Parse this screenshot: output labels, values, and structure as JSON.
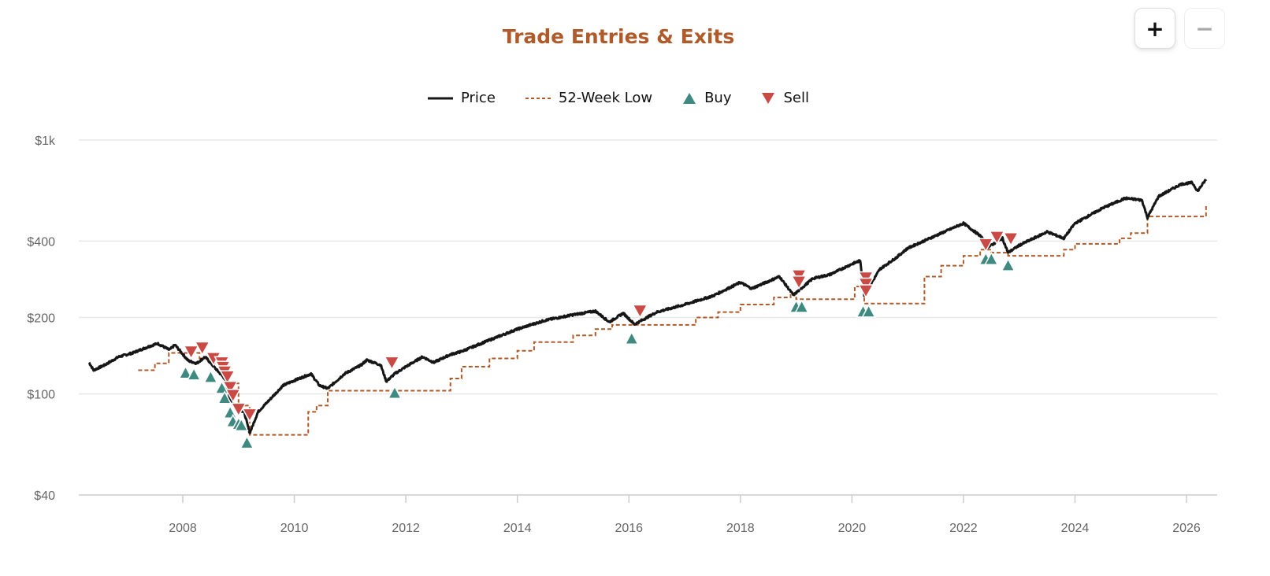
{
  "controls": {
    "zoom_in": "+",
    "zoom_out": "−"
  },
  "colors": {
    "price": "#161616",
    "low": "#b05a2a",
    "buy": "#3e8a80",
    "sell": "#c94a44",
    "title": "#b05a2a",
    "grid": "#e8e8e8"
  },
  "chart_data": {
    "type": "line",
    "title": "Trade Entries & Exits",
    "legend": {
      "position": "top-center",
      "items": [
        {
          "label": "Price",
          "icon": "solid-line"
        },
        {
          "label": "52-Week Low",
          "icon": "dashed-line"
        },
        {
          "label": "Buy",
          "icon": "triangle-up"
        },
        {
          "label": "Sell",
          "icon": "triangle-down"
        }
      ]
    },
    "y_scale": "log",
    "ylim": [
      40,
      1000
    ],
    "y_ticks": [
      {
        "v": 1000,
        "label": "$1k"
      },
      {
        "v": 400,
        "label": "$400"
      },
      {
        "v": 200,
        "label": "$200"
      },
      {
        "v": 100,
        "label": "$100"
      },
      {
        "v": 40,
        "label": "$40"
      }
    ],
    "x_ticks": [
      "2008",
      "2010",
      "2012",
      "2014",
      "2016",
      "2018",
      "2020",
      "2022",
      "2024",
      "2026"
    ],
    "xlim": [
      2006.0,
      2026.6
    ],
    "grid": true,
    "series": [
      {
        "name": "Price",
        "style": "solid",
        "points": [
          [
            2006.32,
            133
          ],
          [
            2006.4,
            124
          ],
          [
            2006.6,
            130
          ],
          [
            2006.85,
            140
          ],
          [
            2007.1,
            145
          ],
          [
            2007.4,
            154
          ],
          [
            2007.55,
            158
          ],
          [
            2007.76,
            149
          ],
          [
            2007.86,
            156
          ],
          [
            2007.97,
            146
          ],
          [
            2008.1,
            135
          ],
          [
            2008.25,
            132
          ],
          [
            2008.4,
            140
          ],
          [
            2008.6,
            125
          ],
          [
            2008.75,
            115
          ],
          [
            2008.85,
            95
          ],
          [
            2008.95,
            88
          ],
          [
            2009.1,
            85
          ],
          [
            2009.2,
            70
          ],
          [
            2009.35,
            85
          ],
          [
            2009.5,
            92
          ],
          [
            2009.8,
            108
          ],
          [
            2010.0,
            113
          ],
          [
            2010.3,
            120
          ],
          [
            2010.45,
            108
          ],
          [
            2010.6,
            105
          ],
          [
            2010.9,
            120
          ],
          [
            2011.2,
            130
          ],
          [
            2011.3,
            136
          ],
          [
            2011.55,
            130
          ],
          [
            2011.65,
            112
          ],
          [
            2011.8,
            120
          ],
          [
            2012.0,
            128
          ],
          [
            2012.3,
            140
          ],
          [
            2012.5,
            133
          ],
          [
            2012.8,
            143
          ],
          [
            2013.0,
            147
          ],
          [
            2013.5,
            163
          ],
          [
            2014.0,
            180
          ],
          [
            2014.5,
            195
          ],
          [
            2015.0,
            205
          ],
          [
            2015.4,
            212
          ],
          [
            2015.65,
            192
          ],
          [
            2015.9,
            208
          ],
          [
            2016.1,
            188
          ],
          [
            2016.5,
            210
          ],
          [
            2017.0,
            225
          ],
          [
            2017.5,
            243
          ],
          [
            2018.0,
            275
          ],
          [
            2018.2,
            260
          ],
          [
            2018.7,
            290
          ],
          [
            2018.95,
            245
          ],
          [
            2019.3,
            285
          ],
          [
            2019.6,
            295
          ],
          [
            2020.0,
            325
          ],
          [
            2020.15,
            335
          ],
          [
            2020.22,
            245
          ],
          [
            2020.5,
            310
          ],
          [
            2020.8,
            345
          ],
          [
            2021.0,
            375
          ],
          [
            2021.5,
            420
          ],
          [
            2022.0,
            470
          ],
          [
            2022.3,
            420
          ],
          [
            2022.45,
            380
          ],
          [
            2022.7,
            410
          ],
          [
            2022.8,
            360
          ],
          [
            2023.0,
            385
          ],
          [
            2023.5,
            435
          ],
          [
            2023.8,
            410
          ],
          [
            2024.0,
            470
          ],
          [
            2024.5,
            540
          ],
          [
            2024.9,
            590
          ],
          [
            2025.2,
            580
          ],
          [
            2025.3,
            495
          ],
          [
            2025.5,
            600
          ],
          [
            2025.9,
            670
          ],
          [
            2026.1,
            680
          ],
          [
            2026.2,
            630
          ],
          [
            2026.35,
            700
          ]
        ]
      },
      {
        "name": "52-Week Low",
        "style": "dashed-step",
        "points": [
          [
            2007.2,
            124
          ],
          [
            2007.5,
            132
          ],
          [
            2007.75,
            145
          ],
          [
            2008.3,
            138
          ],
          [
            2008.5,
            132
          ],
          [
            2008.8,
            110
          ],
          [
            2009.0,
            90
          ],
          [
            2009.2,
            69
          ],
          [
            2010.2,
            69
          ],
          [
            2010.25,
            85
          ],
          [
            2010.4,
            90
          ],
          [
            2010.6,
            103
          ],
          [
            2012.7,
            103
          ],
          [
            2012.8,
            115
          ],
          [
            2013.0,
            128
          ],
          [
            2013.5,
            138
          ],
          [
            2014.0,
            148
          ],
          [
            2014.3,
            160
          ],
          [
            2015.0,
            170
          ],
          [
            2015.4,
            180
          ],
          [
            2015.7,
            187
          ],
          [
            2017.0,
            187
          ],
          [
            2017.2,
            200
          ],
          [
            2017.6,
            210
          ],
          [
            2018.0,
            225
          ],
          [
            2018.6,
            240
          ],
          [
            2018.9,
            248
          ],
          [
            2019.0,
            236
          ],
          [
            2020.0,
            236
          ],
          [
            2020.05,
            265
          ],
          [
            2020.22,
            227
          ],
          [
            2021.2,
            227
          ],
          [
            2021.3,
            290
          ],
          [
            2021.6,
            320
          ],
          [
            2022.0,
            350
          ],
          [
            2022.3,
            370
          ],
          [
            2022.5,
            360
          ],
          [
            2022.8,
            350
          ],
          [
            2023.7,
            350
          ],
          [
            2023.8,
            370
          ],
          [
            2024.0,
            390
          ],
          [
            2024.8,
            410
          ],
          [
            2025.0,
            430
          ],
          [
            2025.3,
            500
          ],
          [
            2026.3,
            500
          ],
          [
            2026.35,
            560
          ]
        ]
      }
    ],
    "buys": [
      [
        2008.05,
        132
      ],
      [
        2008.2,
        130
      ],
      [
        2008.5,
        127
      ],
      [
        2008.7,
        115
      ],
      [
        2008.75,
        105
      ],
      [
        2008.85,
        92
      ],
      [
        2008.9,
        85
      ],
      [
        2009.0,
        83
      ],
      [
        2009.05,
        82
      ],
      [
        2009.15,
        70
      ],
      [
        2011.8,
        110
      ],
      [
        2016.05,
        180
      ],
      [
        2019.0,
        240
      ],
      [
        2019.1,
        240
      ],
      [
        2020.2,
        230
      ],
      [
        2020.3,
        230
      ],
      [
        2022.4,
        370
      ],
      [
        2022.5,
        370
      ],
      [
        2022.8,
        350
      ]
    ],
    "sells": [
      [
        2008.15,
        138
      ],
      [
        2008.35,
        143
      ],
      [
        2008.55,
        130
      ],
      [
        2008.7,
        125
      ],
      [
        2008.72,
        120
      ],
      [
        2008.75,
        115
      ],
      [
        2008.8,
        110
      ],
      [
        2008.85,
        100
      ],
      [
        2008.9,
        93
      ],
      [
        2009.0,
        82
      ],
      [
        2009.2,
        78
      ],
      [
        2011.75,
        125
      ],
      [
        2016.2,
        200
      ],
      [
        2019.05,
        275
      ],
      [
        2019.05,
        260
      ],
      [
        2020.25,
        270
      ],
      [
        2020.25,
        255
      ],
      [
        2020.25,
        240
      ],
      [
        2022.4,
        365
      ],
      [
        2022.6,
        390
      ],
      [
        2022.85,
        385
      ]
    ]
  }
}
